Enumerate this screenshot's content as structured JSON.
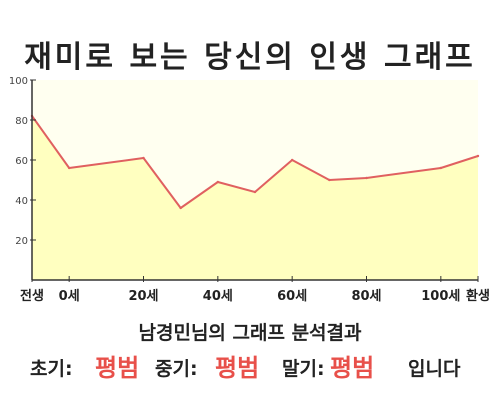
{
  "title": "재미로 보는 당신의 인생 그래프",
  "caption": "남경민님의 그래프 분석결과",
  "result": {
    "early_label": "초기:",
    "early_value": "평범",
    "mid_label": "중기:",
    "mid_value": "평범",
    "late_label": "말기:",
    "late_value": "평범",
    "ending": "입니다"
  },
  "colors": {
    "line": "#e06060",
    "fill_top": "#fffff0",
    "fill_bottom": "#ffffc0",
    "accent_text": "#e8504a",
    "axis": "#333333"
  },
  "chart_data": {
    "type": "area",
    "x": [
      -10,
      0,
      20,
      30,
      40,
      50,
      60,
      70,
      80,
      100,
      110
    ],
    "values": [
      82,
      56,
      61,
      36,
      49,
      44,
      60,
      50,
      51,
      56,
      62
    ],
    "x_tick_values": [
      -10,
      0,
      20,
      40,
      60,
      80,
      100,
      110
    ],
    "x_tick_labels": [
      "전생",
      "0세",
      "20세",
      "40세",
      "60세",
      "80세",
      "100세",
      "환생"
    ],
    "y_ticks": [
      20,
      40,
      60,
      80,
      100
    ],
    "ylim": [
      0,
      100
    ],
    "xlim": [
      -10,
      110
    ],
    "xlabel": "",
    "ylabel": "",
    "grid": false,
    "legend": "none"
  }
}
